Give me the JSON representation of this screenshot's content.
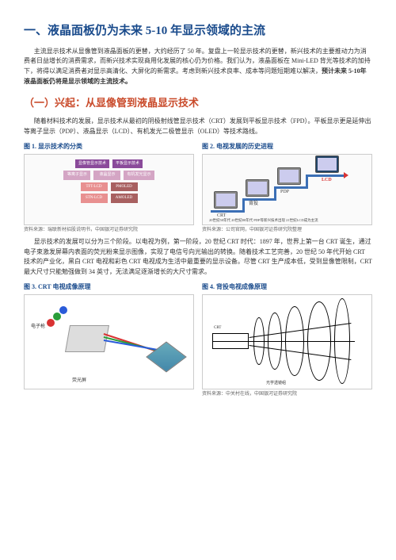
{
  "title": "一、液晶面板仍为未来 5-10 年显示领域的主流",
  "para1": "主流显示技术从显像管到液晶面板的更替，大约经历了 50 年。复盘上一轮显示技术的更替，新兴技术的主要推动力为消费者日益增长的消费需求，而新兴技术实现商用化发展的核心仍为价格。我们认为，液晶面板在 Mini-LED 背光等技术的加持下，将得以满足消费者对显示高清化、大屏化的新需求。考虑到新兴技术良率、成本等问题短期难以解决，",
  "para1_bold": "预计未来 5-10年液晶面板仍将是显示领域的主流技术。",
  "h2_1": "（一）兴起：从显像管到液晶显示技术",
  "para2": "随着材料技术的发展，显示技术从最初的阴极射线管显示技术（CRT）发展到平板显示技术（FPD）。平板显示更是延伸出等离子显示（PDP）、液晶显示（LCD）、有机发光二极管显示（OLED）等技术路线。",
  "fig1_title": "图 1.  显示技术的分类",
  "fig2_title": "图 2.  电视发展的历史进程",
  "fig1_caption": "资料来源：瑞联新材招股说明书，中国银河证券研究院",
  "fig2_caption": "资料来源：公司官网，中国银河证券研究院整理",
  "para3": "显示技术的发展可以分为三个阶段。以电视为例，第一阶段，20 世纪 CRT 时代：1897 年，世界上第一台 CRT 诞生，通过电子束激发屏幕内表面的荧光粉来显示图像，实现了电信号向光输出的转换。随着技术工艺完善，20 世纪 50 年代开始 CRT 技术的产业化，黑白 CRT 电视和彩色 CRT 电视成为生活中最重要的显示设备。尽管 CRT 生产成本低，受到显像管限制，CRT 最大尺寸只能勉强做到 34 英寸，无法满足逐渐增长的大尺寸需求。",
  "fig3_title": "图 3. CRT 电视成像原理",
  "fig4_title": "图 4.  背投电视成像原理",
  "fig4_caption": "资料来源：中关村在线，中国银河证券研究院",
  "flowchart": {
    "row1": [
      {
        "label": "显像管显示技术",
        "color": "#8a4a9a"
      },
      {
        "label": "平板显示技术",
        "color": "#8a4a9a"
      }
    ],
    "row2": [
      {
        "label": "等离子显示",
        "color": "#d4a5c4"
      },
      {
        "label": "液晶显示",
        "color": "#d4a5c4"
      },
      {
        "label": "有机发光显示",
        "color": "#d4a5c4"
      }
    ],
    "row3": [
      {
        "label": "TFT-LCD",
        "color": "#e89090"
      },
      {
        "label": "PMOLED",
        "color": "#a86060"
      }
    ],
    "row4": [
      {
        "label": "STN-LCD",
        "color": "#e89090"
      },
      {
        "label": "AMOLED",
        "color": "#a86060"
      }
    ]
  },
  "timeline": {
    "labels": [
      "CRT",
      "背投",
      "PDP",
      "LCD"
    ],
    "sub": "20世纪50年代    20世纪80年代   PDP等新兴技术出现  21世纪LCD成为主流"
  },
  "crt": {
    "labels": {
      "gun": "电子枪",
      "beam": "",
      "screen": "荧光屏"
    },
    "colors": [
      "#d93333",
      "#2a9d3a",
      "#2a5bd9"
    ]
  }
}
